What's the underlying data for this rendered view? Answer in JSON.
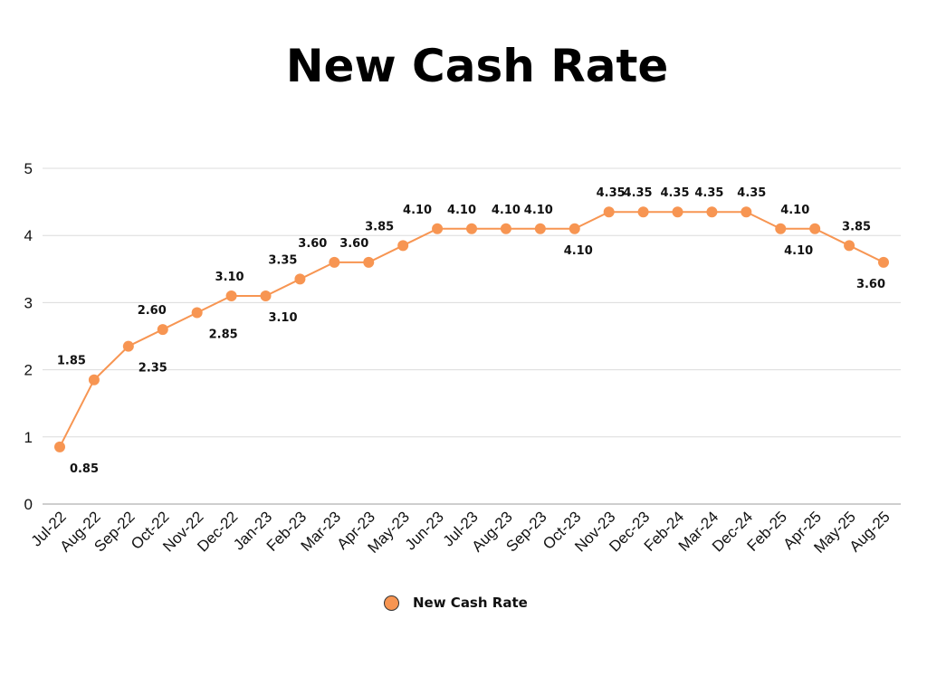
{
  "chart_data": {
    "type": "line",
    "title": "New Cash Rate",
    "xlabel": "",
    "ylabel": "",
    "ylim": [
      0,
      5
    ],
    "yticks": [
      "0",
      "1",
      "2",
      "3",
      "4",
      "5"
    ],
    "grid": true,
    "legend_position": "bottom",
    "categories": [
      "Jul-22",
      "Aug-22",
      "Sep-22",
      "Oct-22",
      "Nov-22",
      "Dec-22",
      "Jan-23",
      "Feb-23",
      "Mar-23",
      "Apr-23",
      "May-23",
      "Jun-23",
      "Jul-23",
      "Aug-23",
      "Sep-23",
      "Oct-23",
      "Nov-23",
      "Dec-23",
      "Feb-24",
      "Mar-24",
      "Dec-24",
      "Feb-25",
      "Apr-25",
      "May-25",
      "Aug-25"
    ],
    "series": [
      {
        "name": "New Cash Rate",
        "color": "#f79552",
        "values": [
          0.85,
          1.85,
          2.35,
          2.6,
          2.85,
          3.1,
          3.1,
          3.35,
          3.6,
          3.6,
          3.85,
          4.1,
          4.1,
          4.1,
          4.1,
          4.1,
          4.35,
          4.35,
          4.35,
          4.35,
          4.35,
          4.1,
          4.1,
          3.85,
          3.6
        ],
        "labels": [
          "0.85",
          "1.85",
          "2.35",
          "2.60",
          "2.85",
          "3.10",
          "3.10",
          "3.35",
          "3.60",
          "3.60",
          "3.85",
          "4.10",
          "4.10",
          "4.10",
          "4.10",
          "4.10",
          "4.35",
          "4.35",
          "4.35",
          "4.35",
          "4.35",
          "4.10",
          "4.10",
          "3.85",
          "3.60"
        ]
      }
    ]
  }
}
